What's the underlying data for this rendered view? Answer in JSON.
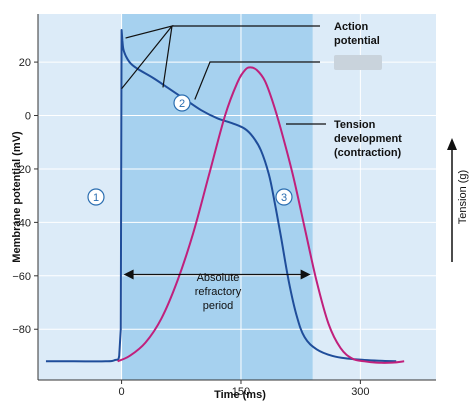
{
  "chart_data": {
    "type": "line",
    "title": "",
    "xlabel": "Time (ms)",
    "ylabel": "Membrane potential (mV)",
    "y2label": "Tension (g)",
    "xlim": [
      -105,
      395
    ],
    "ylim": [
      -99,
      38
    ],
    "x_ticks": [
      0,
      150,
      300
    ],
    "y_ticks": [
      20,
      0,
      -20,
      -40,
      -60,
      -80
    ],
    "grid": true,
    "shaded_region": {
      "x": [
        0,
        240
      ],
      "label": "Absolute refractory period"
    },
    "series": [
      {
        "name": "Action potential",
        "color": "#1f4d9a",
        "x": [
          -95,
          -60,
          -20,
          -8,
          -3,
          -1,
          0,
          1,
          3,
          10,
          20,
          40,
          60,
          80,
          100,
          120,
          140,
          155,
          165,
          175,
          185,
          192,
          200,
          210,
          220,
          230,
          245,
          265,
          285,
          305,
          325,
          345
        ],
        "y": [
          -92,
          -92,
          -92,
          -91.5,
          -90,
          -80,
          32,
          28,
          24,
          20,
          17.5,
          14,
          10,
          6,
          2,
          -1,
          -3,
          -5,
          -8,
          -13,
          -22,
          -32,
          -45,
          -62,
          -75,
          -83,
          -87.5,
          -90,
          -91,
          -91.5,
          -91.8,
          -92
        ]
      },
      {
        "name": "Tension development (contraction)",
        "color": "#c0207c",
        "x": [
          -5,
          10,
          30,
          50,
          70,
          90,
          110,
          130,
          145,
          155,
          162,
          170,
          180,
          190,
          200,
          215,
          230,
          245,
          260,
          275,
          290,
          305,
          320,
          340,
          355
        ],
        "y": [
          -92,
          -90,
          -85,
          -76,
          -62,
          -44,
          -22,
          0,
          12,
          17,
          18,
          17,
          13,
          5,
          -5,
          -22,
          -42,
          -62,
          -78,
          -87,
          -91,
          -92,
          -92.5,
          -92.5,
          -92
        ]
      }
    ],
    "annotations": {
      "action_potential": [
        "Action",
        "potential"
      ],
      "tension": [
        "Tension",
        "development",
        "(contraction)"
      ],
      "refractory": [
        "Absolute",
        "refractory",
        "period"
      ],
      "phases": [
        "1",
        "2",
        "3"
      ]
    }
  },
  "colors": {
    "plot_bg": "#dcebf8",
    "shade": "#a6d1ef",
    "grid": "#ffffff",
    "axis": "#333333",
    "phase_circle_fill": "#ffffff",
    "phase_circle_stroke": "#2a6db0",
    "arrow": "#111111",
    "blurred_label": "#c9d3dc"
  }
}
